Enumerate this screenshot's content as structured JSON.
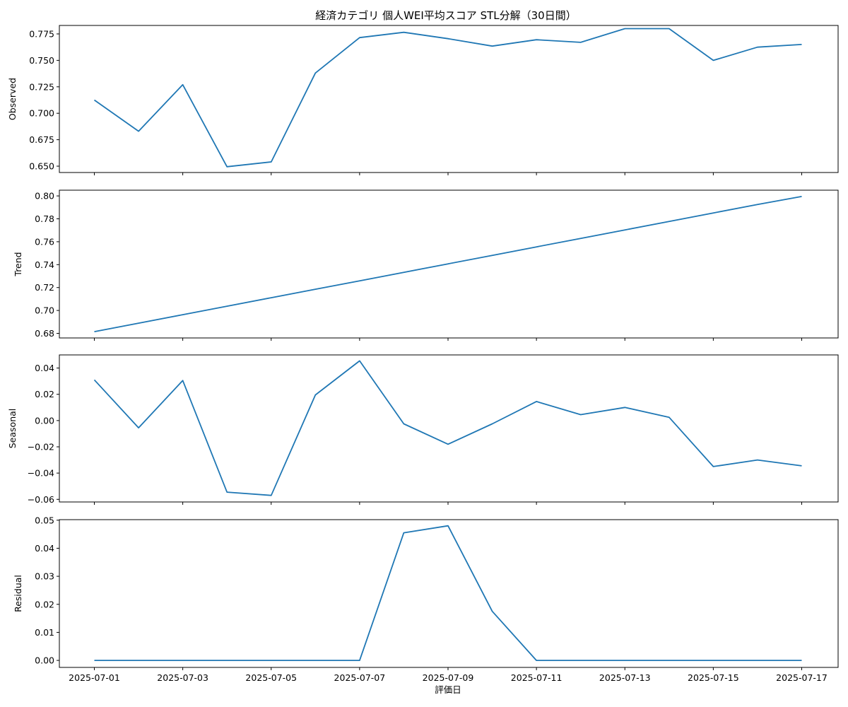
{
  "chart_data": {
    "type": "line",
    "title": "経済カテゴリ 個人WEI平均スコア STL分解（30日間）",
    "xlabel": "評価日",
    "x": [
      "2025-07-01",
      "2025-07-02",
      "2025-07-03",
      "2025-07-04",
      "2025-07-05",
      "2025-07-06",
      "2025-07-07",
      "2025-07-08",
      "2025-07-09",
      "2025-07-10",
      "2025-07-11",
      "2025-07-12",
      "2025-07-13",
      "2025-07-14",
      "2025-07-15",
      "2025-07-16",
      "2025-07-17"
    ],
    "xticks": [
      "2025-07-01",
      "2025-07-03",
      "2025-07-05",
      "2025-07-07",
      "2025-07-09",
      "2025-07-11",
      "2025-07-13",
      "2025-07-15",
      "2025-07-17"
    ],
    "panels": [
      {
        "ylabel": "Observed",
        "ylim": [
          0.644,
          0.783
        ],
        "yticks": [
          0.65,
          0.675,
          0.7,
          0.725,
          0.75,
          0.775
        ],
        "ytick_labels": [
          "0.650",
          "0.675",
          "0.700",
          "0.725",
          "0.750",
          "0.775"
        ],
        "values": [
          0.7125,
          0.683,
          0.727,
          0.6495,
          0.654,
          0.738,
          0.7715,
          0.7765,
          0.7705,
          0.7635,
          0.7695,
          0.767,
          0.78,
          0.78,
          0.75,
          0.7625,
          0.765
        ]
      },
      {
        "ylabel": "Trend",
        "ylim": [
          0.676,
          0.805
        ],
        "yticks": [
          0.68,
          0.7,
          0.72,
          0.74,
          0.76,
          0.78,
          0.8
        ],
        "ytick_labels": [
          "0.68",
          "0.70",
          "0.72",
          "0.74",
          "0.76",
          "0.78",
          "0.80"
        ],
        "values": [
          0.6815,
          0.6889,
          0.6963,
          0.7037,
          0.7111,
          0.7185,
          0.7259,
          0.7333,
          0.7407,
          0.7481,
          0.7555,
          0.7629,
          0.7703,
          0.7777,
          0.7851,
          0.7925,
          0.7995
        ]
      },
      {
        "ylabel": "Seasonal",
        "ylim": [
          -0.062,
          0.05
        ],
        "yticks": [
          -0.06,
          -0.04,
          -0.02,
          0.0,
          0.02,
          0.04
        ],
        "ytick_labels": [
          "−0.06",
          "−0.04",
          "−0.02",
          "0.00",
          "0.02",
          "0.04"
        ],
        "values": [
          0.031,
          -0.0055,
          0.0305,
          -0.0545,
          -0.057,
          0.0195,
          0.0455,
          -0.0025,
          -0.018,
          -0.0025,
          0.0145,
          0.0045,
          0.01,
          0.0025,
          -0.035,
          -0.03,
          -0.0345
        ]
      },
      {
        "ylabel": "Residual",
        "ylim": [
          -0.0025,
          0.0502
        ],
        "yticks": [
          0.0,
          0.01,
          0.02,
          0.03,
          0.04,
          0.05
        ],
        "ytick_labels": [
          "0.00",
          "0.01",
          "0.02",
          "0.03",
          "0.04",
          "0.05"
        ],
        "values": [
          0,
          0,
          0,
          0,
          0,
          0,
          0,
          0.0455,
          0.048,
          0.0175,
          0,
          0,
          0,
          0,
          0,
          0,
          0
        ]
      }
    ]
  }
}
